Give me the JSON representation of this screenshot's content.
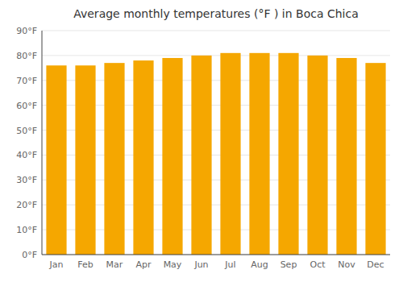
{
  "chart_data": {
    "type": "bar",
    "title": "Average monthly temperatures (°F ) in Boca Chica",
    "categories": [
      "Jan",
      "Feb",
      "Mar",
      "Apr",
      "May",
      "Jun",
      "Jul",
      "Aug",
      "Sep",
      "Oct",
      "Nov",
      "Dec"
    ],
    "values": [
      76,
      76,
      77,
      78,
      79,
      80,
      81,
      81,
      81,
      80,
      79,
      77
    ],
    "color": "#F5A700",
    "ylim": [
      0,
      90
    ],
    "yticks": [
      {
        "value": 0,
        "label": "0°F"
      },
      {
        "value": 10,
        "label": "10°F"
      },
      {
        "value": 20,
        "label": "20°F"
      },
      {
        "value": 30,
        "label": "30°F"
      },
      {
        "value": 40,
        "label": "40°F"
      },
      {
        "value": 50,
        "label": "50°F"
      },
      {
        "value": 60,
        "label": "60°F"
      },
      {
        "value": 70,
        "label": "70°F"
      },
      {
        "value": 80,
        "label": "80°F"
      },
      {
        "value": 90,
        "label": "90°F"
      }
    ],
    "grid": true
  }
}
